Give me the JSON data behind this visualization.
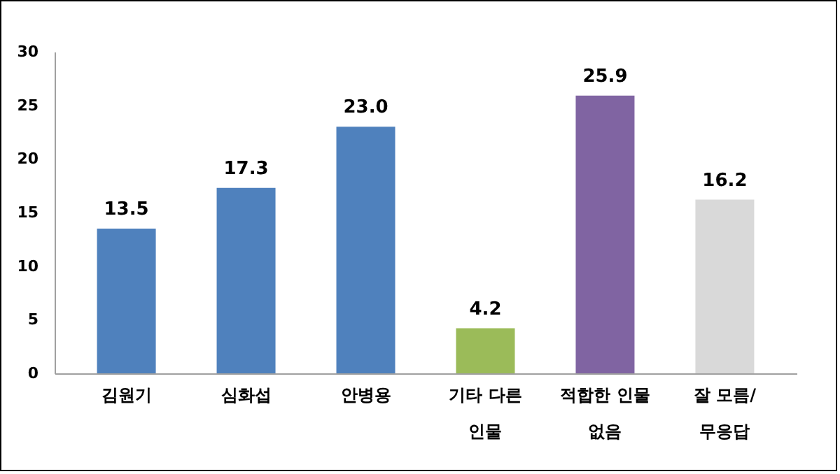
{
  "chart_data": {
    "type": "bar",
    "categories": [
      "김원기",
      "심화섭",
      "안병용",
      "기타 다른 인물",
      "적합한 인물 없음",
      "잘 모름/무응답"
    ],
    "values": [
      13.5,
      17.3,
      23.0,
      4.2,
      25.9,
      16.2
    ],
    "value_labels": [
      "13.5",
      "17.3",
      "23.0",
      "4.2",
      "25.9",
      "16.2"
    ],
    "colors": [
      "#4f81bd",
      "#4f81bd",
      "#4f81bd",
      "#9bbb59",
      "#8064a2",
      "#d9d9d9"
    ],
    "ylim": [
      0,
      30
    ],
    "yticks": [
      0,
      5,
      10,
      15,
      20,
      25,
      30
    ],
    "grid": false
  }
}
